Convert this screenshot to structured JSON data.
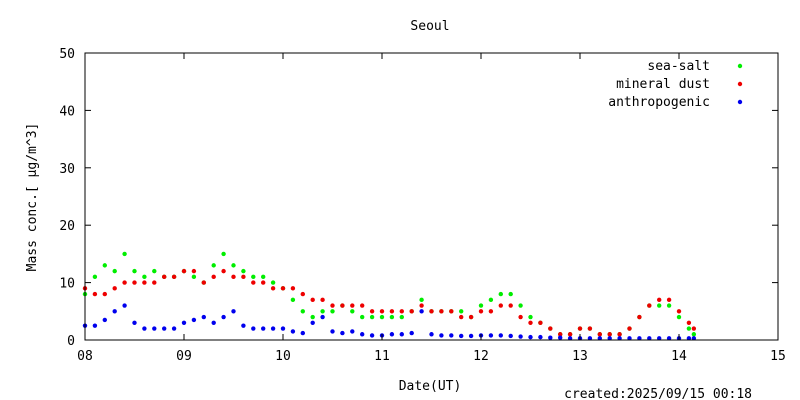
{
  "chart_data": {
    "type": "scatter",
    "title": "Seoul",
    "xlabel": "Date(UT)",
    "ylabel": "Mass conc.[ μg/m^3]",
    "xlim": [
      8,
      15
    ],
    "ylim": [
      0,
      50
    ],
    "x_tick_labels": [
      "08",
      "09",
      "10",
      "11",
      "12",
      "13",
      "14",
      "15"
    ],
    "y_tick_labels": [
      "0",
      "10",
      "20",
      "30",
      "40",
      "50"
    ],
    "legend_position": "top-right",
    "grid": false,
    "footer": "created:2025/09/15 00:18",
    "series": [
      {
        "name": "sea-salt",
        "color": "#00ee00",
        "x": [
          8.0,
          8.1,
          8.2,
          8.3,
          8.4,
          8.5,
          8.6,
          8.7,
          8.8,
          8.9,
          9.0,
          9.1,
          9.2,
          9.3,
          9.4,
          9.5,
          9.6,
          9.7,
          9.8,
          9.9,
          10.0,
          10.1,
          10.2,
          10.3,
          10.4,
          10.5,
          10.6,
          10.7,
          10.8,
          10.9,
          11.0,
          11.1,
          11.2,
          11.3,
          11.4,
          11.5,
          11.6,
          11.7,
          11.8,
          11.9,
          12.0,
          12.1,
          12.2,
          12.3,
          12.4,
          12.5,
          12.6,
          12.7,
          12.8,
          12.9,
          13.0,
          13.1,
          13.2,
          13.3,
          13.4,
          13.5,
          13.6,
          13.7,
          13.8,
          13.9,
          14.0,
          14.1,
          14.15
        ],
        "y": [
          8,
          11,
          13,
          12,
          15,
          12,
          11,
          12,
          11,
          11,
          12,
          11,
          10,
          13,
          15,
          13,
          12,
          11,
          11,
          10,
          9,
          7,
          5,
          4,
          5,
          5,
          6,
          5,
          4,
          4,
          4,
          4,
          4,
          5,
          7,
          5,
          5,
          5,
          5,
          4,
          6,
          7,
          8,
          8,
          6,
          4,
          3,
          2,
          1,
          1,
          2,
          2,
          1,
          1,
          1,
          2,
          4,
          6,
          6,
          6,
          4,
          2,
          1
        ]
      },
      {
        "name": "mineral dust",
        "color": "#ee0000",
        "x": [
          8.0,
          8.1,
          8.2,
          8.3,
          8.4,
          8.5,
          8.6,
          8.7,
          8.8,
          8.9,
          9.0,
          9.1,
          9.2,
          9.3,
          9.4,
          9.5,
          9.6,
          9.7,
          9.8,
          9.9,
          10.0,
          10.1,
          10.2,
          10.3,
          10.4,
          10.5,
          10.6,
          10.7,
          10.8,
          10.9,
          11.0,
          11.1,
          11.2,
          11.3,
          11.4,
          11.5,
          11.6,
          11.7,
          11.8,
          11.9,
          12.0,
          12.1,
          12.2,
          12.3,
          12.4,
          12.5,
          12.6,
          12.7,
          12.8,
          12.9,
          13.0,
          13.1,
          13.2,
          13.3,
          13.4,
          13.5,
          13.6,
          13.7,
          13.8,
          13.9,
          14.0,
          14.1,
          14.15
        ],
        "y": [
          9,
          8,
          8,
          9,
          10,
          10,
          10,
          10,
          11,
          11,
          12,
          12,
          10,
          11,
          12,
          11,
          11,
          10,
          10,
          9,
          9,
          9,
          8,
          7,
          7,
          6,
          6,
          6,
          6,
          5,
          5,
          5,
          5,
          5,
          6,
          5,
          5,
          5,
          4,
          4,
          5,
          5,
          6,
          6,
          4,
          3,
          3,
          2,
          1,
          1,
          2,
          2,
          1,
          1,
          1,
          2,
          4,
          6,
          7,
          7,
          5,
          3,
          2
        ]
      },
      {
        "name": "anthropogenic",
        "color": "#0000ee",
        "x": [
          8.0,
          8.1,
          8.2,
          8.3,
          8.4,
          8.5,
          8.6,
          8.7,
          8.8,
          8.9,
          9.0,
          9.1,
          9.2,
          9.3,
          9.4,
          9.5,
          9.6,
          9.7,
          9.8,
          9.9,
          10.0,
          10.1,
          10.2,
          10.3,
          10.4,
          10.5,
          10.6,
          10.7,
          10.8,
          10.9,
          11.0,
          11.1,
          11.2,
          11.3,
          11.4,
          11.5,
          11.6,
          11.7,
          11.8,
          11.9,
          12.0,
          12.1,
          12.2,
          12.3,
          12.4,
          12.5,
          12.6,
          12.7,
          12.8,
          12.9,
          13.0,
          13.1,
          13.2,
          13.3,
          13.4,
          13.5,
          13.6,
          13.7,
          13.8,
          13.9,
          14.0,
          14.1,
          14.15
        ],
        "y": [
          2.5,
          2.5,
          3.5,
          5,
          6,
          3,
          2,
          2,
          2,
          2,
          3,
          3.5,
          4,
          3,
          4,
          5,
          2.5,
          2,
          2,
          2,
          2,
          1.5,
          1.2,
          3,
          4,
          1.5,
          1.2,
          1.5,
          1,
          0.8,
          0.8,
          1,
          1,
          1.2,
          5,
          1,
          0.8,
          0.8,
          0.7,
          0.7,
          0.8,
          0.8,
          0.8,
          0.7,
          0.6,
          0.5,
          0.5,
          0.4,
          0.4,
          0.3,
          0.3,
          0.3,
          0.3,
          0.3,
          0.3,
          0.3,
          0.3,
          0.3,
          0.3,
          0.3,
          0.3,
          0.3,
          0.3
        ]
      }
    ]
  }
}
